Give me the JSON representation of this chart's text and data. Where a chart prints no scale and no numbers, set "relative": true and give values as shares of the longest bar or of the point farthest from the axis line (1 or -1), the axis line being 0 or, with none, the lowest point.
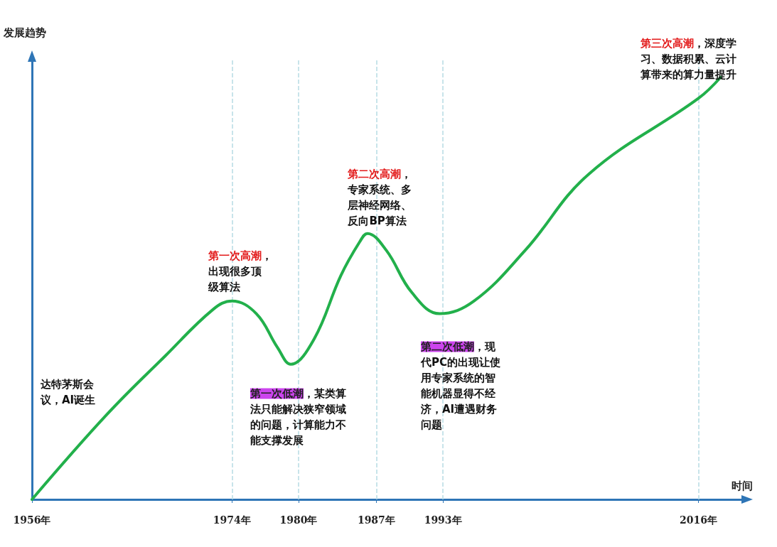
{
  "chart_data": {
    "type": "line",
    "relative": true,
    "xlabel": "时间",
    "ylabel": "发展趋势",
    "x": [
      1956,
      1962.7,
      1968,
      1972.3,
      1974,
      1976.2,
      1978.1,
      1979.3,
      1981.4,
      1983.8,
      1985.5,
      1986.2,
      1987.9,
      1990.2,
      1992.7,
      1995.8,
      2000.4,
      2006.1,
      2016,
      2018
    ],
    "values": [
      0,
      0.2,
      0.34,
      0.45,
      0.47,
      0.44,
      0.36,
      0.32,
      0.38,
      0.53,
      0.61,
      0.63,
      0.59,
      0.49,
      0.44,
      0.47,
      0.59,
      0.77,
      0.95,
      1
    ],
    "color": "#22b04b",
    "marker": "none",
    "line_style": "solid",
    "grid": false,
    "xlim": [
      1956,
      2020
    ],
    "xticks": [
      {
        "value": 1956,
        "label": "1956年"
      },
      {
        "value": 1974,
        "label": "1974年"
      },
      {
        "value": 1980,
        "label": "1980年"
      },
      {
        "value": 1987,
        "label": "1987年"
      },
      {
        "value": 1993,
        "label": "1993年"
      },
      {
        "value": 2016,
        "label": "2016年"
      }
    ],
    "ref_lines": [
      {
        "axis": "x",
        "value": 1974,
        "label": null,
        "color": "#b7dbe3",
        "line_style": "dashed"
      },
      {
        "axis": "x",
        "value": 1980,
        "label": null,
        "color": "#b7dbe3",
        "line_style": "dashed"
      },
      {
        "axis": "x",
        "value": 1987,
        "label": null,
        "color": "#b7dbe3",
        "line_style": "dashed"
      },
      {
        "axis": "x",
        "value": 1993,
        "label": null,
        "color": "#b7dbe3",
        "line_style": "dashed"
      },
      {
        "axis": "x",
        "value": 2016,
        "label": null,
        "color": "#b7dbe3",
        "line_style": "dashed"
      }
    ],
    "annotations": [
      "达特茅斯会议，AI诞生",
      {
        "text": "第一次高潮，出现很多顶级算法",
        "x": 1974,
        "y": 0.47
      },
      {
        "text": "第一次低潮，某类算法只能解决狭窄领域的问题，计算能力不能支撑发展",
        "x": 1980,
        "y": 0.33
      },
      {
        "text": "第二次高潮，专家系统、多层神经网络、反向BP算法",
        "x": 1987,
        "y": 0.6
      },
      "第二次低潮，现代PC的出现让使用专家系统的智能机器显得不经济，AI遭遇财务问题",
      {
        "text": "第三次高潮，深度学习、数据积累、云计算带来的算力量提升",
        "x": 2016,
        "y": 0.95
      }
    ]
  }
}
